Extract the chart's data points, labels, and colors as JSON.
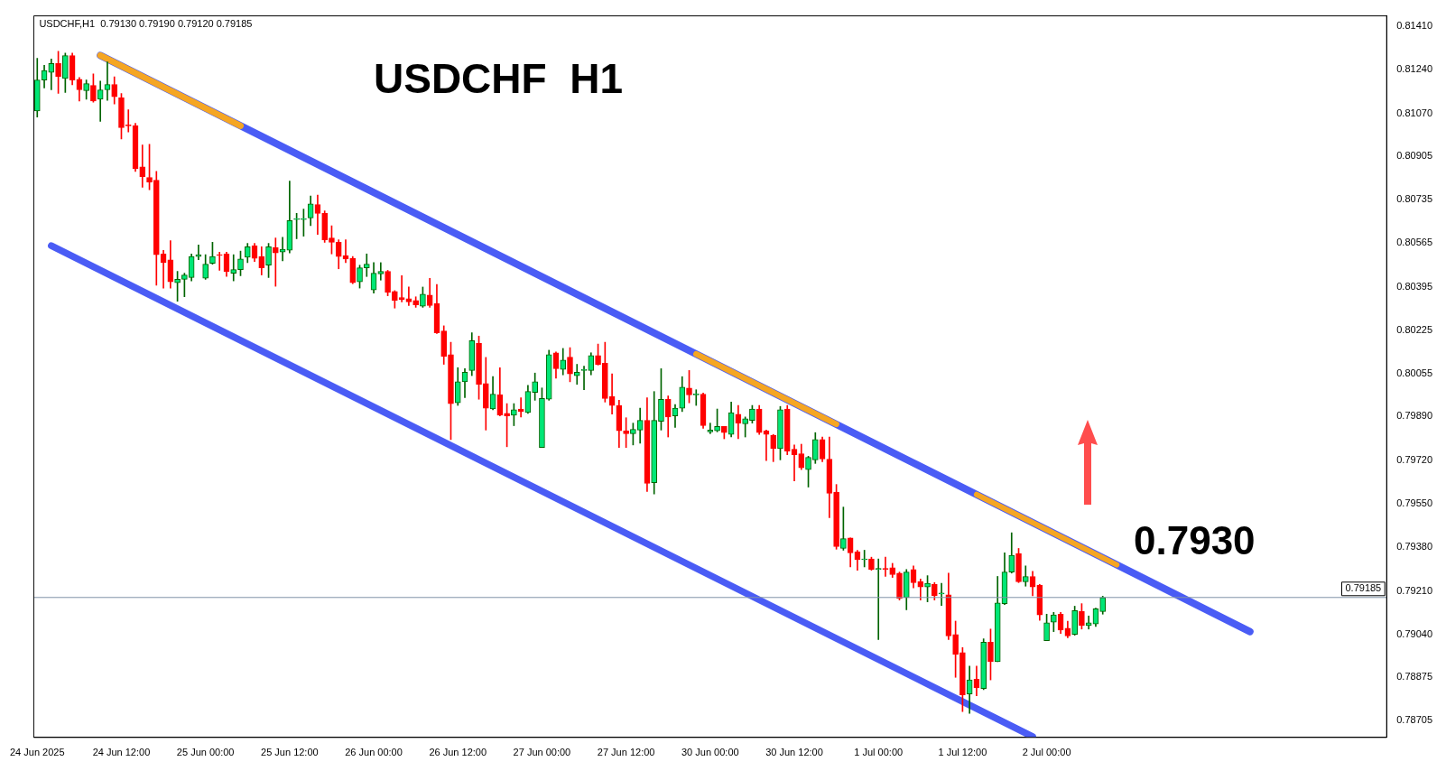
{
  "chart_data": {
    "type": "candlestick",
    "title": "USDCHF  H1",
    "annotations": [
      "USDCHF,H1  0.79130 0.79190 0.79120 0.79185",
      "0.7930"
    ],
    "categories": [
      "24 Jun 2025",
      null,
      null,
      null,
      null,
      null,
      null,
      null,
      null,
      null,
      null,
      null,
      "24 Jun 12:00",
      null,
      null,
      null,
      null,
      null,
      null,
      null,
      null,
      null,
      null,
      null,
      "25 Jun 00:00",
      null,
      null,
      null,
      null,
      null,
      null,
      null,
      null,
      null,
      null,
      null,
      "25 Jun 12:00",
      null,
      null,
      null,
      null,
      null,
      null,
      null,
      null,
      null,
      null,
      null,
      "26 Jun 00:00",
      null,
      null,
      null,
      null,
      null,
      null,
      null,
      null,
      null,
      null,
      null,
      "26 Jun 12:00",
      null,
      null,
      null,
      null,
      null,
      null,
      null,
      null,
      null,
      null,
      null,
      "27 Jun 00:00",
      null,
      null,
      null,
      null,
      null,
      null,
      null,
      null,
      null,
      null,
      null,
      "27 Jun 12:00",
      null,
      null,
      null,
      null,
      null,
      null,
      null,
      null,
      null,
      null,
      null,
      "30 Jun 00:00",
      null,
      null,
      null,
      null,
      null,
      null,
      null,
      null,
      null,
      null,
      null,
      "30 Jun 12:00",
      null,
      null,
      null,
      null,
      null,
      null,
      null,
      null,
      null,
      null,
      null,
      "1 Jul 00:00",
      null,
      null,
      null,
      null,
      null,
      null,
      null,
      null,
      null,
      null,
      null,
      "1 Jul 12:00",
      null,
      null,
      null,
      null,
      null,
      null,
      null,
      null,
      null,
      null,
      null,
      "2 Jul 00:00",
      null,
      null,
      null,
      null,
      null,
      null,
      null,
      null,
      null,
      null,
      null,
      null,
      null,
      null,
      null,
      null,
      null,
      null,
      null,
      null,
      null,
      null,
      null,
      null,
      null,
      null,
      null,
      null,
      null,
      null,
      null,
      null,
      null,
      null,
      null,
      null,
      null,
      null,
      null,
      null,
      null,
      null,
      null,
      null,
      null,
      null,
      null,
      null
    ],
    "ohlc": [
      [
        0.8108,
        0.81285,
        0.81056,
        0.812
      ],
      [
        0.812,
        0.81258,
        0.81169,
        0.81237
      ],
      [
        0.8123,
        0.81282,
        0.81162,
        0.81265
      ],
      [
        0.81265,
        0.81312,
        0.81148,
        0.81213
      ],
      [
        0.81206,
        0.81305,
        0.81152,
        0.81295
      ],
      [
        0.81295,
        0.81305,
        0.81182,
        0.812
      ],
      [
        0.81203,
        0.8121,
        0.81118,
        0.81162
      ],
      [
        0.81159,
        0.812,
        0.81125,
        0.81186
      ],
      [
        0.81179,
        0.81224,
        0.81114,
        0.81118
      ],
      [
        0.81125,
        0.81196,
        0.81039,
        0.81162
      ],
      [
        0.81162,
        0.81271,
        0.81121,
        0.81183
      ],
      [
        0.81183,
        0.81213,
        0.81107,
        0.81135
      ],
      [
        0.81131,
        0.81148,
        0.80971,
        0.81015
      ],
      [
        0.81025,
        0.81084,
        0.80998,
        0.81022
      ],
      [
        0.81022,
        0.81032,
        0.80844,
        0.80855
      ],
      [
        0.80862,
        0.80947,
        0.80783,
        0.80824
      ],
      [
        0.80821,
        0.8095,
        0.80773,
        0.80803
      ],
      [
        0.8081,
        0.80844,
        0.80401,
        0.8052
      ],
      [
        0.80523,
        0.80537,
        0.8039,
        0.80489
      ],
      [
        0.805,
        0.80575,
        0.8039,
        0.80414
      ],
      [
        0.80411,
        0.80455,
        0.80339,
        0.80424
      ],
      [
        0.80424,
        0.80448,
        0.80356,
        0.80441
      ],
      [
        0.80431,
        0.80523,
        0.80418,
        0.80513
      ],
      [
        0.80513,
        0.80558,
        0.805,
        0.8052
      ],
      [
        0.80428,
        0.8052,
        0.80424,
        0.80483
      ],
      [
        0.80486,
        0.80568,
        0.80483,
        0.80513
      ],
      [
        0.8052,
        0.8053,
        0.80459,
        0.80517
      ],
      [
        0.80523,
        0.8053,
        0.80435,
        0.80455
      ],
      [
        0.80448,
        0.8052,
        0.80418,
        0.80462
      ],
      [
        0.80462,
        0.80534,
        0.80438,
        0.80503
      ],
      [
        0.8051,
        0.80564,
        0.80489,
        0.80551
      ],
      [
        0.80554,
        0.80564,
        0.80493,
        0.80506
      ],
      [
        0.80513,
        0.80551,
        0.80441,
        0.80469
      ],
      [
        0.80479,
        0.80564,
        0.80431,
        0.80551
      ],
      [
        0.80547,
        0.80585,
        0.80397,
        0.80527
      ],
      [
        0.8053,
        0.80588,
        0.80496,
        0.80541
      ],
      [
        0.80537,
        0.80807,
        0.80527,
        0.80653
      ],
      [
        0.80657,
        0.80681,
        0.80582,
        0.80657
      ],
      [
        0.80657,
        0.80698,
        0.80592,
        0.80657
      ],
      [
        0.80663,
        0.80749,
        0.80633,
        0.80718
      ],
      [
        0.80715,
        0.80752,
        0.80599,
        0.80681
      ],
      [
        0.80681,
        0.80691,
        0.80568,
        0.80578
      ],
      [
        0.80585,
        0.80633,
        0.80523,
        0.80568
      ],
      [
        0.80568,
        0.80578,
        0.80465,
        0.80513
      ],
      [
        0.80517,
        0.80578,
        0.80489,
        0.80503
      ],
      [
        0.80506,
        0.80513,
        0.80407,
        0.80411
      ],
      [
        0.80414,
        0.80479,
        0.8039,
        0.80469
      ],
      [
        0.80469,
        0.80523,
        0.80435,
        0.80483
      ],
      [
        0.80383,
        0.80489,
        0.8037,
        0.80448
      ],
      [
        0.80445,
        0.80489,
        0.80421,
        0.80455
      ],
      [
        0.80455,
        0.80459,
        0.8036,
        0.80373
      ],
      [
        0.80377,
        0.8038,
        0.80312,
        0.80342
      ],
      [
        0.80353,
        0.80438,
        0.80336,
        0.80346
      ],
      [
        0.80349,
        0.80394,
        0.80322,
        0.80336
      ],
      [
        0.80342,
        0.80356,
        0.80315,
        0.80325
      ],
      [
        0.80319,
        0.80394,
        0.80315,
        0.80366
      ],
      [
        0.80363,
        0.80428,
        0.80315,
        0.80322
      ],
      [
        0.80329,
        0.80404,
        0.80213,
        0.80216
      ],
      [
        0.80223,
        0.80243,
        0.80093,
        0.80124
      ],
      [
        0.80131,
        0.80179,
        0.798,
        0.7994
      ],
      [
        0.79943,
        0.8008,
        0.79933,
        0.80025
      ],
      [
        0.80025,
        0.80076,
        0.79963,
        0.80062
      ],
      [
        0.80069,
        0.80216,
        0.80049,
        0.80185
      ],
      [
        0.80175,
        0.80203,
        0.79957,
        0.80015
      ],
      [
        0.80018,
        0.8012,
        0.79837,
        0.79922
      ],
      [
        0.79919,
        0.80045,
        0.79916,
        0.79977
      ],
      [
        0.79974,
        0.8008,
        0.79892,
        0.79895
      ],
      [
        0.79902,
        0.7994,
        0.79772,
        0.79892
      ],
      [
        0.79895,
        0.7994,
        0.79854,
        0.79916
      ],
      [
        0.79919,
        0.79963,
        0.79888,
        0.79909
      ],
      [
        0.79905,
        0.80011,
        0.79902,
        0.79987
      ],
      [
        0.79984,
        0.80059,
        0.79953,
        0.80025
      ],
      [
        0.79769,
        0.80001,
        0.79769,
        0.7996
      ],
      [
        0.79957,
        0.80148,
        0.79953,
        0.80131
      ],
      [
        0.80138,
        0.80141,
        0.80039,
        0.80076
      ],
      [
        0.80073,
        0.80155,
        0.80052,
        0.8011
      ],
      [
        0.80121,
        0.80158,
        0.80025,
        0.80056
      ],
      [
        0.80049,
        0.80093,
        0.80015,
        0.80062
      ],
      [
        0.80069,
        0.80086,
        0.79994,
        0.80069
      ],
      [
        0.80069,
        0.80138,
        0.80052,
        0.80127
      ],
      [
        0.80127,
        0.80172,
        0.8009,
        0.80093
      ],
      [
        0.80097,
        0.80179,
        0.79946,
        0.7996
      ],
      [
        0.79967,
        0.80056,
        0.79899,
        0.79933
      ],
      [
        0.79933,
        0.79953,
        0.79769,
        0.79834
      ],
      [
        0.79834,
        0.79885,
        0.79769,
        0.79823
      ],
      [
        0.79823,
        0.79864,
        0.79779,
        0.7984
      ],
      [
        0.79837,
        0.79922,
        0.79786,
        0.79875
      ],
      [
        0.79875,
        0.79963,
        0.79598,
        0.79629
      ],
      [
        0.79632,
        0.79987,
        0.79588,
        0.79875
      ],
      [
        0.79871,
        0.80076,
        0.79837,
        0.79957
      ],
      [
        0.79957,
        0.7997,
        0.7981,
        0.79888
      ],
      [
        0.79892,
        0.79936,
        0.79847,
        0.79922
      ],
      [
        0.79922,
        0.80045,
        0.79909,
        0.80004
      ],
      [
        0.80001,
        0.80069,
        0.79943,
        0.79974
      ],
      [
        0.79974,
        0.79994,
        0.79933,
        0.79977
      ],
      [
        0.79977,
        0.79981,
        0.79844,
        0.79854
      ],
      [
        0.7983,
        0.79864,
        0.79823,
        0.79837
      ],
      [
        0.79834,
        0.79919,
        0.7983,
        0.79851
      ],
      [
        0.79851,
        0.79851,
        0.79803,
        0.79827
      ],
      [
        0.7982,
        0.79946,
        0.7981,
        0.79905
      ],
      [
        0.79899,
        0.79933,
        0.79803,
        0.79864
      ],
      [
        0.79861,
        0.79888,
        0.7981,
        0.79881
      ],
      [
        0.79875,
        0.79933,
        0.79864,
        0.79919
      ],
      [
        0.79919,
        0.79933,
        0.7982,
        0.79827
      ],
      [
        0.79834,
        0.79837,
        0.79718,
        0.7982
      ],
      [
        0.79817,
        0.7982,
        0.79714,
        0.79765
      ],
      [
        0.79765,
        0.79929,
        0.79721,
        0.79916
      ],
      [
        0.79919,
        0.79933,
        0.79741,
        0.79755
      ],
      [
        0.79762,
        0.79779,
        0.79639,
        0.79741
      ],
      [
        0.79745,
        0.79782,
        0.79683,
        0.7969
      ],
      [
        0.79683,
        0.79735,
        0.79615,
        0.79731
      ],
      [
        0.79721,
        0.79827,
        0.79707,
        0.798
      ],
      [
        0.798,
        0.7981,
        0.79714,
        0.79724
      ],
      [
        0.79724,
        0.7981,
        0.79496,
        0.79591
      ],
      [
        0.79595,
        0.79625,
        0.79373,
        0.79383
      ],
      [
        0.79376,
        0.79537,
        0.79369,
        0.79414
      ],
      [
        0.79417,
        0.79417,
        0.79304,
        0.79359
      ],
      [
        0.79362,
        0.79369,
        0.79291,
        0.79332
      ],
      [
        0.79332,
        0.79369,
        0.79304,
        0.79335
      ],
      [
        0.79335,
        0.79342,
        0.79291,
        0.79294
      ],
      [
        0.79294,
        0.79335,
        0.79021,
        0.79298
      ],
      [
        0.79298,
        0.79342,
        0.79267,
        0.79294
      ],
      [
        0.79301,
        0.79318,
        0.79263,
        0.79274
      ],
      [
        0.7928,
        0.79284,
        0.79175,
        0.79181
      ],
      [
        0.79185,
        0.79294,
        0.79137,
        0.79284
      ],
      [
        0.79294,
        0.79308,
        0.79222,
        0.79243
      ],
      [
        0.79246,
        0.79257,
        0.79175,
        0.79226
      ],
      [
        0.79226,
        0.7927,
        0.79168,
        0.7924
      ],
      [
        0.79236,
        0.79243,
        0.79175,
        0.79192
      ],
      [
        0.79199,
        0.7924,
        0.79154,
        0.79202
      ],
      [
        0.79195,
        0.7928,
        0.79021,
        0.79035
      ],
      [
        0.79041,
        0.79093,
        0.78874,
        0.78963
      ],
      [
        0.7897,
        0.7899,
        0.78741,
        0.78806
      ],
      [
        0.78809,
        0.78918,
        0.78734,
        0.78864
      ],
      [
        0.78867,
        0.78918,
        0.78802,
        0.78833
      ],
      [
        0.7883,
        0.79024,
        0.78826,
        0.79011
      ],
      [
        0.79011,
        0.79062,
        0.78864,
        0.78935
      ],
      [
        0.78935,
        0.79267,
        0.78935,
        0.79164
      ],
      [
        0.79161,
        0.79359,
        0.79157,
        0.79284
      ],
      [
        0.79284,
        0.79437,
        0.7928,
        0.79349
      ],
      [
        0.79356,
        0.79376,
        0.79243,
        0.79246
      ],
      [
        0.79246,
        0.79308,
        0.79229,
        0.79267
      ],
      [
        0.79267,
        0.79287,
        0.79192,
        0.79226
      ],
      [
        0.79233,
        0.79236,
        0.79096,
        0.79117
      ],
      [
        0.79017,
        0.7912,
        0.79017,
        0.79086
      ],
      [
        0.79089,
        0.79127,
        0.79052,
        0.79117
      ],
      [
        0.7912,
        0.79127,
        0.79045,
        0.79058
      ],
      [
        0.79065,
        0.79093,
        0.79028,
        0.79035
      ],
      [
        0.79041,
        0.79151,
        0.79038,
        0.79134
      ],
      [
        0.7913,
        0.79161,
        0.79062,
        0.79076
      ],
      [
        0.79076,
        0.79113,
        0.79062,
        0.79086
      ],
      [
        0.79082,
        0.79144,
        0.79072,
        0.79141
      ],
      [
        0.7913,
        0.7919,
        0.7912,
        0.79185
      ],
      null,
      null,
      null,
      null,
      null,
      null,
      null,
      null,
      null,
      null,
      null,
      null,
      null,
      null,
      null,
      null,
      null,
      null,
      null,
      null,
      null,
      null,
      null,
      null,
      null,
      null,
      null,
      null,
      null,
      null,
      null,
      null,
      null,
      null,
      null,
      null,
      null,
      null,
      null,
      null
    ],
    "series": [
      {
        "type": "line",
        "color": "#4a5cf5",
        "values": [
          null,
          null,
          null,
          null,
          null,
          null,
          null,
          null,
          null,
          0.81296,
          null,
          null,
          null,
          null,
          null,
          null,
          null,
          null,
          null,
          null,
          null,
          null,
          null,
          null,
          null,
          null,
          null,
          null,
          null,
          null,
          null,
          null,
          null,
          null,
          null,
          null,
          null,
          null,
          null,
          null,
          null,
          null,
          null,
          null,
          null,
          null,
          null,
          null,
          null,
          null,
          null,
          null,
          null,
          null,
          null,
          null,
          null,
          null,
          null,
          null,
          null,
          null,
          null,
          null,
          null,
          null,
          null,
          null,
          null,
          null,
          null,
          null,
          null,
          null,
          null,
          null,
          null,
          null,
          null,
          null,
          null,
          null,
          null,
          null,
          null,
          null,
          null,
          null,
          null,
          null,
          null,
          null,
          null,
          null,
          null,
          null,
          null,
          null,
          null,
          null,
          null,
          null,
          null,
          null,
          null,
          null,
          null,
          null,
          null,
          null,
          null,
          null,
          null,
          null,
          null,
          null,
          null,
          null,
          null,
          null,
          null,
          null,
          null,
          null,
          null,
          null,
          null,
          null,
          null,
          null,
          null,
          null,
          null,
          null,
          null,
          null,
          null,
          null,
          null,
          null,
          null,
          null,
          null,
          null,
          null,
          null,
          null,
          null,
          null,
          null,
          null,
          null,
          null,
          null,
          null,
          null,
          null,
          null,
          null,
          null,
          null,
          null,
          null,
          null,
          null,
          null,
          null,
          null,
          null,
          null,
          null,
          null,
          null,
          0.79052,
          null,
          null,
          null,
          null,
          null,
          null,
          null,
          null,
          null,
          null,
          null,
          null,
          null,
          null,
          null,
          null,
          null,
          null,
          null
        ]
      },
      {
        "type": "line",
        "color": "#4a5cf5",
        "values": [
          null,
          null,
          0.80555,
          null,
          null,
          null,
          null,
          null,
          null,
          null,
          null,
          null,
          null,
          null,
          null,
          null,
          null,
          null,
          null,
          null,
          null,
          null,
          null,
          null,
          null,
          null,
          null,
          null,
          null,
          null,
          null,
          null,
          null,
          null,
          null,
          null,
          null,
          null,
          null,
          null,
          null,
          null,
          null,
          null,
          null,
          null,
          null,
          null,
          null,
          null,
          null,
          null,
          null,
          null,
          null,
          null,
          null,
          null,
          null,
          null,
          null,
          null,
          null,
          null,
          null,
          null,
          null,
          null,
          null,
          null,
          null,
          null,
          null,
          null,
          null,
          null,
          null,
          null,
          null,
          null,
          null,
          null,
          null,
          null,
          null,
          null,
          null,
          null,
          null,
          null,
          null,
          null,
          null,
          null,
          null,
          null,
          null,
          null,
          null,
          null,
          null,
          null,
          null,
          null,
          null,
          null,
          null,
          null,
          null,
          null,
          null,
          null,
          null,
          null,
          null,
          null,
          null,
          null,
          null,
          null,
          null,
          null,
          null,
          null,
          null,
          null,
          null,
          null,
          null,
          null,
          null,
          null,
          null,
          null,
          null,
          null,
          null,
          null,
          null,
          null,
          null,
          null,
          0.78643,
          null,
          null,
          null,
          null,
          null,
          null,
          null,
          null,
          null,
          null,
          null,
          null,
          null,
          null,
          null,
          null,
          null,
          null,
          null,
          null,
          null,
          null,
          null,
          null,
          null,
          null,
          null,
          null,
          null,
          null,
          null,
          null,
          null,
          null,
          null,
          null,
          null,
          null,
          null,
          null,
          null,
          null,
          null,
          null,
          null,
          null,
          null,
          null,
          null,
          null
        ]
      },
      {
        "type": "line",
        "color": "#f5a623",
        "values": [
          null,
          null,
          null,
          null,
          null,
          null,
          null,
          null,
          null,
          0.81296,
          null,
          null,
          null,
          null,
          null,
          null,
          null,
          null,
          null,
          null,
          null,
          null,
          null,
          null,
          null,
          null,
          null,
          null,
          null,
          0.81022,
          null,
          null,
          null,
          null,
          null,
          null,
          null,
          null,
          null,
          null,
          null,
          null,
          null,
          null,
          null,
          null,
          null,
          null,
          null,
          null,
          null,
          null,
          null,
          null,
          null,
          null,
          null,
          null,
          null,
          null,
          null,
          null,
          null,
          null,
          null,
          null,
          null,
          null,
          null,
          null,
          null,
          null,
          null,
          null,
          null,
          null,
          null,
          null,
          null,
          null,
          null,
          null,
          null,
          null,
          null,
          null,
          null,
          null,
          null,
          null,
          null,
          null,
          null,
          null,
          null,
          null,
          null,
          null,
          null,
          null,
          null,
          null,
          null,
          null,
          null,
          null,
          null,
          null,
          null,
          null,
          null,
          null,
          null,
          null,
          null,
          null,
          null,
          null,
          null,
          null,
          null,
          null,
          null,
          null,
          null,
          null,
          null,
          null,
          null,
          null,
          null,
          null,
          null,
          null,
          null,
          null,
          null,
          null,
          null,
          null,
          null,
          null,
          null,
          null,
          null,
          null,
          null,
          null,
          null,
          null,
          null,
          null,
          null,
          null,
          null,
          null,
          null,
          null,
          null,
          null,
          null,
          null,
          null,
          null,
          null,
          null,
          null,
          null,
          null,
          null,
          null,
          null,
          null,
          null,
          null,
          null,
          null,
          null,
          null,
          null,
          null,
          null,
          null,
          null,
          null,
          null,
          null,
          null,
          null,
          null,
          null,
          null,
          null
        ]
      },
      {
        "type": "line",
        "color": "#f5a623",
        "values": [
          null,
          null,
          null,
          null,
          null,
          null,
          null,
          null,
          null,
          null,
          null,
          null,
          null,
          null,
          null,
          null,
          null,
          null,
          null,
          null,
          null,
          null,
          null,
          null,
          null,
          null,
          null,
          null,
          null,
          null,
          null,
          null,
          null,
          null,
          null,
          null,
          null,
          null,
          null,
          null,
          null,
          null,
          null,
          null,
          null,
          null,
          null,
          null,
          null,
          null,
          null,
          null,
          null,
          null,
          null,
          null,
          null,
          null,
          null,
          null,
          null,
          null,
          null,
          null,
          null,
          null,
          null,
          null,
          null,
          null,
          null,
          null,
          null,
          null,
          null,
          null,
          null,
          null,
          null,
          null,
          null,
          null,
          null,
          null,
          null,
          null,
          null,
          null,
          null,
          null,
          null,
          null,
          null,
          null,
          0.80133,
          null,
          null,
          null,
          null,
          null,
          null,
          null,
          null,
          null,
          null,
          null,
          null,
          null,
          null,
          null,
          null,
          null,
          null,
          null,
          0.7986,
          null,
          null,
          null,
          null,
          null,
          null,
          null,
          null,
          null,
          null,
          null,
          null,
          null,
          null,
          null,
          null,
          null,
          null,
          null,
          null,
          null,
          null,
          null,
          null,
          null,
          null,
          null,
          null,
          null,
          null,
          null,
          null,
          null,
          null,
          null,
          null,
          null,
          null,
          null,
          null,
          null,
          null,
          null,
          null,
          null,
          null,
          null,
          null,
          null,
          null,
          null,
          null,
          null,
          null,
          null,
          null,
          null,
          null,
          null,
          null,
          null,
          null,
          null,
          null,
          null,
          null,
          null,
          null,
          null,
          null,
          null,
          null,
          null,
          null,
          null,
          null,
          null,
          null
        ]
      },
      {
        "type": "line",
        "color": "#f5a623",
        "values": [
          null,
          null,
          null,
          null,
          null,
          null,
          null,
          null,
          null,
          null,
          null,
          null,
          null,
          null,
          null,
          null,
          null,
          null,
          null,
          null,
          null,
          null,
          null,
          null,
          null,
          null,
          null,
          null,
          null,
          null,
          null,
          null,
          null,
          null,
          null,
          null,
          null,
          null,
          null,
          null,
          null,
          null,
          null,
          null,
          null,
          null,
          null,
          null,
          null,
          null,
          null,
          null,
          null,
          null,
          null,
          null,
          null,
          null,
          null,
          null,
          null,
          null,
          null,
          null,
          null,
          null,
          null,
          null,
          null,
          null,
          null,
          null,
          null,
          null,
          null,
          null,
          null,
          null,
          null,
          null,
          null,
          null,
          null,
          null,
          null,
          null,
          null,
          null,
          null,
          null,
          null,
          null,
          null,
          null,
          null,
          null,
          null,
          null,
          null,
          null,
          null,
          null,
          null,
          null,
          null,
          null,
          null,
          null,
          null,
          null,
          null,
          null,
          null,
          null,
          null,
          null,
          null,
          null,
          null,
          null,
          null,
          null,
          null,
          null,
          null,
          null,
          null,
          null,
          null,
          null,
          null,
          null,
          null,
          null,
          0.79586,
          null,
          null,
          null,
          null,
          null,
          null,
          null,
          null,
          null,
          null,
          null,
          null,
          null,
          null,
          null,
          null,
          null,
          null,
          null,
          0.79312,
          null,
          null,
          null,
          null,
          null,
          null,
          null,
          null,
          null,
          null,
          null,
          null,
          null,
          null,
          null,
          null,
          null,
          null,
          null,
          null,
          null,
          null,
          null,
          null,
          null,
          null,
          null,
          null,
          null,
          null,
          null,
          null,
          null,
          null,
          null,
          null,
          null,
          null
        ]
      }
    ],
    "ylim": [
      0.7864,
      0.8145
    ],
    "yticks": [
      {
        "value": 0.8141,
        "label": "0.81410"
      },
      {
        "value": 0.8124,
        "label": "0.81240"
      },
      {
        "value": 0.8107,
        "label": "0.81070"
      },
      0.80905,
      0.80735,
      0.80565,
      0.80395,
      0.80225,
      0.80055,
      {
        "value": 0.7989,
        "label": "0.79890"
      },
      {
        "value": 0.7972,
        "label": "0.79720"
      },
      {
        "value": 0.7955,
        "label": "0.79550"
      },
      {
        "value": 0.7938,
        "label": "0.79380"
      },
      {
        "value": 0.7921,
        "label": "0.79210"
      },
      {
        "value": 0.7904,
        "label": "0.79040"
      },
      0.78875,
      0.78705
    ],
    "ref_lines": [
      {
        "axis": "y",
        "value": 0.79185,
        "label": "0.79185",
        "color": "#7f93a8"
      }
    ],
    "marker": "none"
  }
}
